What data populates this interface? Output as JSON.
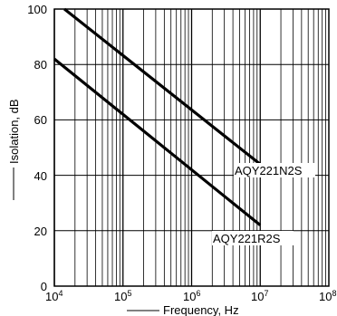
{
  "chart_data": {
    "type": "line",
    "title": "",
    "xlabel": "Frequency, Hz",
    "ylabel": "Isolation, dB",
    "xscale": "log",
    "x_exponent_range": [
      4,
      8
    ],
    "xlim": [
      10000,
      100000000
    ],
    "ylim": [
      0,
      100
    ],
    "grid": true,
    "x_ticks": [
      {
        "base": "10",
        "exp": "4"
      },
      {
        "base": "10",
        "exp": "5"
      },
      {
        "base": "10",
        "exp": "6"
      },
      {
        "base": "10",
        "exp": "7"
      },
      {
        "base": "10",
        "exp": "8"
      }
    ],
    "y_ticks": [
      "0",
      "20",
      "40",
      "60",
      "80",
      "100"
    ],
    "series": [
      {
        "name": "AQY221N2S",
        "x": [
          14000,
          10000000
        ],
        "y": [
          100,
          44
        ]
      },
      {
        "name": "AQY221R2S",
        "x": [
          10000,
          10000000
        ],
        "y": [
          82,
          22
        ]
      }
    ]
  }
}
